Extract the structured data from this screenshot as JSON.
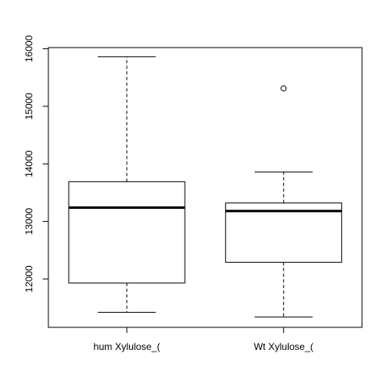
{
  "chart_data": {
    "type": "boxplot",
    "title": "",
    "xlabel": "",
    "ylabel": "",
    "categories": [
      "hum Xylulose_(",
      "Wt Xylulose_("
    ],
    "boxes": [
      {
        "category": "hum Xylulose_(",
        "whisker_low": 11420,
        "q1": 11930,
        "median": 13240,
        "q3": 13690,
        "whisker_high": 15860,
        "outliers": []
      },
      {
        "category": "Wt Xylulose_(",
        "whisker_low": 11340,
        "q1": 12290,
        "median": 13180,
        "q3": 13320,
        "whisker_high": 13860,
        "outliers": [
          15310
        ]
      }
    ],
    "yticks": [
      12000,
      13000,
      14000,
      15000,
      16000
    ],
    "ylim": [
      11160,
      16020
    ],
    "grid": false,
    "colors": {
      "box_fill": "#ffffff",
      "stroke": "#000000"
    }
  }
}
